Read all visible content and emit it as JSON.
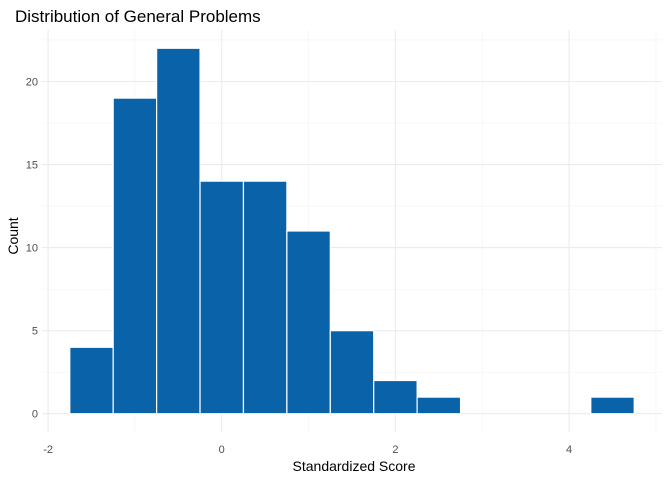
{
  "chart_data": {
    "type": "histogram",
    "title": "Distribution of General Problems",
    "xlabel": "Standardized Score",
    "ylabel": "Count",
    "bins": [
      {
        "x0": -1.75,
        "x1": -1.25,
        "count": 4
      },
      {
        "x0": -1.25,
        "x1": -0.75,
        "count": 19
      },
      {
        "x0": -0.75,
        "x1": -0.25,
        "count": 22
      },
      {
        "x0": -0.25,
        "x1": 0.25,
        "count": 14
      },
      {
        "x0": 0.25,
        "x1": 0.75,
        "count": 14
      },
      {
        "x0": 0.75,
        "x1": 1.25,
        "count": 11
      },
      {
        "x0": 1.25,
        "x1": 1.75,
        "count": 5
      },
      {
        "x0": 1.75,
        "x1": 2.25,
        "count": 2
      },
      {
        "x0": 2.25,
        "x1": 2.75,
        "count": 1
      },
      {
        "x0": 2.75,
        "x1": 3.25,
        "count": 0
      },
      {
        "x0": 3.25,
        "x1": 3.75,
        "count": 0
      },
      {
        "x0": 3.75,
        "x1": 4.25,
        "count": 0
      },
      {
        "x0": 4.25,
        "x1": 4.75,
        "count": 1
      }
    ],
    "xlim": [
      -2.07,
      5.07
    ],
    "ylim": [
      -1.1,
      23.1
    ],
    "xticks": [
      -2,
      0,
      2,
      4
    ],
    "yticks": [
      0,
      5,
      10,
      15,
      20
    ],
    "bar_color": "#0a62a8",
    "grid": true,
    "legend": "none"
  }
}
